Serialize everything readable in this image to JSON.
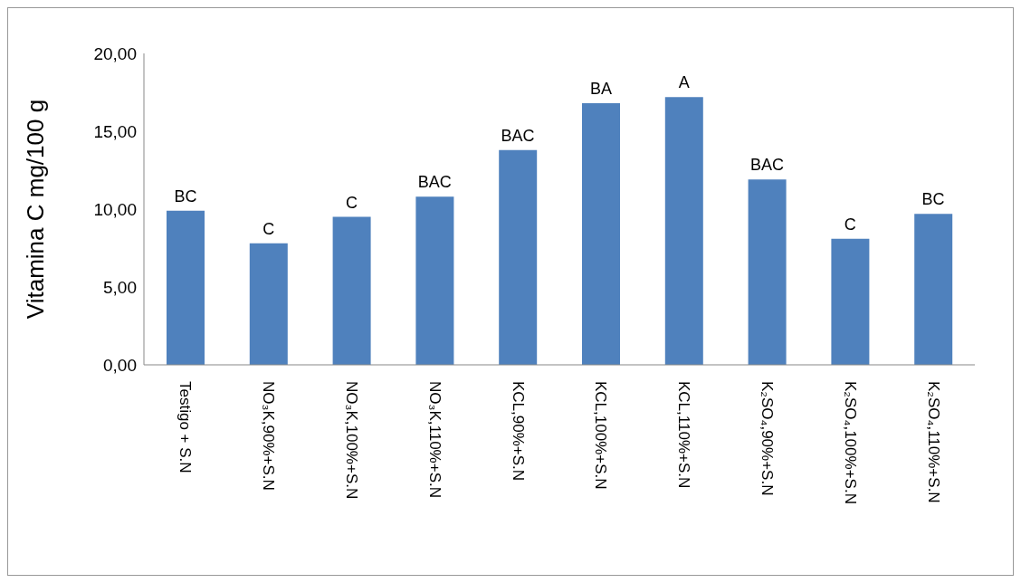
{
  "chart_data": {
    "type": "bar",
    "ylabel": "Vitamina C mg/100 g",
    "categories": [
      "Testigo + S.N",
      "NO₃K,90%+S.N",
      "NO₃K,100%+S.N",
      "NO₃K,110%+S.N",
      "KCL,90%+S.N",
      "KCL,100%+S.N",
      "KCL,110%+S.N",
      "K₂SO₄,90%+S.N",
      "K₂SO₄,100%+S.N",
      "K₂SO₄,110%+S.N"
    ],
    "values": [
      9.9,
      7.8,
      9.5,
      10.8,
      13.8,
      16.8,
      17.2,
      11.9,
      8.1,
      9.7
    ],
    "color": "#4f81bd",
    "ylim": [
      0,
      20
    ],
    "yticks": [
      {
        "value": 0,
        "label": "0,00"
      },
      {
        "value": 5,
        "label": "5,00"
      },
      {
        "value": 10,
        "label": "10,00"
      },
      {
        "value": 15,
        "label": "15,00"
      },
      {
        "value": 20,
        "label": "20,00"
      }
    ],
    "grid": false,
    "annotations": [
      {
        "text": "BC",
        "x": "Testigo + S.N",
        "y": 9.9
      },
      {
        "text": "C",
        "x": "NO₃K,90%+S.N",
        "y": 7.8
      },
      {
        "text": "C",
        "x": "NO₃K,100%+S.N",
        "y": 9.5
      },
      {
        "text": "BAC",
        "x": "NO₃K,110%+S.N",
        "y": 10.8
      },
      {
        "text": "BAC",
        "x": "KCL,90%+S.N",
        "y": 13.8
      },
      {
        "text": "BA",
        "x": "KCL,100%+S.N",
        "y": 16.8
      },
      {
        "text": "A",
        "x": "KCL,110%+S.N",
        "y": 17.2
      },
      {
        "text": "BAC",
        "x": "K₂SO₄,90%+S.N",
        "y": 11.9
      },
      {
        "text": "C",
        "x": "K₂SO₄,100%+S.N",
        "y": 8.1
      },
      {
        "text": "BC",
        "x": "K₂SO₄,110%+S.N",
        "y": 9.7
      }
    ]
  }
}
